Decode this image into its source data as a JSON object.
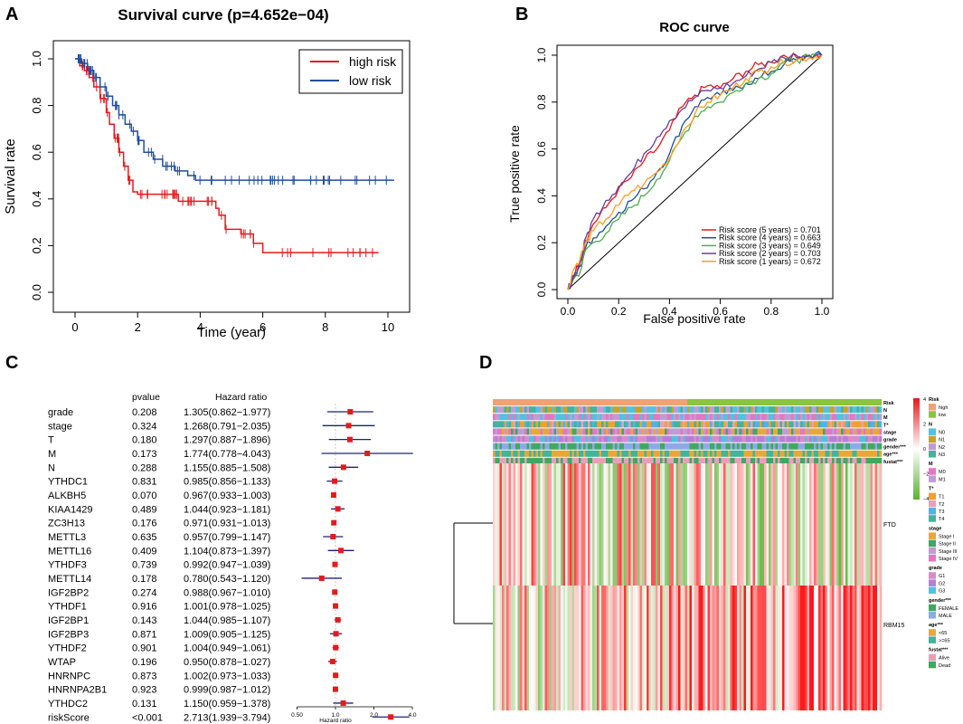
{
  "panels": {
    "a": "A",
    "b": "B",
    "c": "C",
    "d": "D"
  },
  "colors": {
    "red": "#e41a1c",
    "blue": "#1f4e9c",
    "green": "#4daf4a",
    "purple": "#6a3d9a",
    "orange": "#ff9f1c",
    "hmRed": "#e31a1c",
    "hmGreen": "#5bb12f",
    "riskHigh": "#f2a173",
    "riskLow": "#8bc53f"
  },
  "chart_data": [
    {
      "type": "line",
      "id": "survival",
      "title": "Survival curve (p=4.652e−04)",
      "xlabel": "Time (year)",
      "ylabel": "Survival rate",
      "xlim": [
        0,
        10.2
      ],
      "ylim": [
        0,
        1.0
      ],
      "xticks": [
        "0",
        "2",
        "4",
        "6",
        "8",
        "10"
      ],
      "yticks": [
        "0.0",
        "0.2",
        "0.4",
        "0.6",
        "0.8",
        "1.0"
      ],
      "legend": [
        "high risk",
        "low risk"
      ],
      "series": [
        {
          "name": "high risk",
          "x": [
            0,
            0.15,
            0.3,
            0.45,
            0.6,
            0.8,
            1.0,
            1.1,
            1.25,
            1.4,
            1.55,
            1.7,
            1.85,
            2.0,
            3.0,
            3.3,
            4.5,
            4.6,
            4.8,
            5.3,
            5.7,
            6.0,
            9.7
          ],
          "y": [
            1.0,
            0.97,
            0.95,
            0.92,
            0.88,
            0.83,
            0.77,
            0.72,
            0.66,
            0.6,
            0.54,
            0.48,
            0.43,
            0.42,
            0.42,
            0.39,
            0.36,
            0.33,
            0.27,
            0.25,
            0.21,
            0.17,
            0.17
          ]
        },
        {
          "name": "low risk",
          "x": [
            0,
            0.2,
            0.4,
            0.6,
            0.8,
            1.0,
            1.2,
            1.4,
            1.6,
            1.8,
            2.0,
            2.2,
            2.5,
            2.8,
            3.2,
            3.6,
            3.85,
            10.2
          ],
          "y": [
            1.0,
            0.98,
            0.95,
            0.92,
            0.88,
            0.84,
            0.8,
            0.76,
            0.72,
            0.69,
            0.65,
            0.6,
            0.57,
            0.54,
            0.52,
            0.5,
            0.48,
            0.48
          ]
        }
      ]
    },
    {
      "type": "line",
      "id": "roc",
      "title": "ROC curve",
      "xlabel": "False positive rate",
      "ylabel": "True positive rate",
      "xlim": [
        0,
        1
      ],
      "ylim": [
        0,
        1
      ],
      "xticks": [
        "0.0",
        "0.2",
        "0.4",
        "0.6",
        "0.8",
        "1.0"
      ],
      "yticks": [
        "0.0",
        "0.2",
        "0.4",
        "0.6",
        "0.8",
        "1.0"
      ],
      "series": [
        {
          "name": "Risk score (5 years) = 0.701",
          "x": [
            0,
            0.02,
            0.05,
            0.07,
            0.1,
            0.15,
            0.2,
            0.25,
            0.3,
            0.35,
            0.4,
            0.45,
            0.5,
            0.55,
            0.6,
            0.65,
            0.7,
            0.75,
            0.8,
            0.85,
            0.9,
            0.95,
            1.0
          ],
          "y": [
            0,
            0.06,
            0.12,
            0.21,
            0.28,
            0.35,
            0.43,
            0.48,
            0.55,
            0.6,
            0.68,
            0.78,
            0.83,
            0.87,
            0.86,
            0.9,
            0.93,
            0.96,
            0.97,
            1.0,
            0.99,
            1.0,
            1.0
          ]
        },
        {
          "name": "Risk score (4 years) = 0.663",
          "x": [
            0,
            0.02,
            0.05,
            0.07,
            0.1,
            0.15,
            0.2,
            0.25,
            0.3,
            0.35,
            0.4,
            0.45,
            0.5,
            0.55,
            0.6,
            0.65,
            0.7,
            0.75,
            0.8,
            0.85,
            0.9,
            0.95,
            1.0
          ],
          "y": [
            0,
            0.04,
            0.1,
            0.18,
            0.22,
            0.27,
            0.33,
            0.38,
            0.43,
            0.5,
            0.58,
            0.7,
            0.78,
            0.82,
            0.83,
            0.85,
            0.88,
            0.9,
            0.93,
            0.96,
            0.98,
            1.0,
            1.0
          ]
        },
        {
          "name": "Risk score (3 years) = 0.649",
          "x": [
            0,
            0.02,
            0.05,
            0.07,
            0.1,
            0.15,
            0.2,
            0.25,
            0.3,
            0.35,
            0.4,
            0.45,
            0.5,
            0.55,
            0.6,
            0.65,
            0.7,
            0.75,
            0.8,
            0.85,
            0.9,
            0.95,
            1.0
          ],
          "y": [
            0,
            0.04,
            0.08,
            0.17,
            0.2,
            0.24,
            0.3,
            0.35,
            0.4,
            0.47,
            0.55,
            0.65,
            0.74,
            0.78,
            0.8,
            0.84,
            0.88,
            0.9,
            0.92,
            0.97,
            0.98,
            0.99,
            1.0
          ]
        },
        {
          "name": "Risk score (2 years) = 0.703",
          "x": [
            0,
            0.02,
            0.05,
            0.07,
            0.1,
            0.15,
            0.2,
            0.25,
            0.3,
            0.35,
            0.4,
            0.45,
            0.5,
            0.55,
            0.6,
            0.65,
            0.7,
            0.75,
            0.8,
            0.85,
            0.9,
            0.95,
            1.0
          ],
          "y": [
            0,
            0.05,
            0.12,
            0.22,
            0.3,
            0.38,
            0.44,
            0.5,
            0.58,
            0.65,
            0.72,
            0.77,
            0.82,
            0.85,
            0.86,
            0.88,
            0.91,
            0.94,
            0.97,
            0.99,
            1.0,
            1.0,
            1.0
          ]
        },
        {
          "name": "Risk score (1 years) = 0.672",
          "x": [
            0,
            0.02,
            0.05,
            0.07,
            0.1,
            0.15,
            0.2,
            0.25,
            0.3,
            0.35,
            0.4,
            0.45,
            0.5,
            0.55,
            0.6,
            0.65,
            0.7,
            0.75,
            0.8,
            0.85,
            0.9,
            0.95,
            1.0
          ],
          "y": [
            0,
            0.08,
            0.14,
            0.2,
            0.25,
            0.3,
            0.36,
            0.42,
            0.45,
            0.5,
            0.56,
            0.67,
            0.75,
            0.8,
            0.83,
            0.86,
            0.9,
            0.93,
            0.95,
            0.97,
            0.98,
            0.99,
            1.0
          ]
        }
      ]
    },
    {
      "type": "forest",
      "id": "forest",
      "headers": {
        "pvalue": "pvalue",
        "hr": "Hazard ratio"
      },
      "xlabel": "Hazard ratio",
      "xticks": [
        "0.50",
        "1.0",
        "2.0",
        "4.0"
      ],
      "xtick_values": [
        0.5,
        1.0,
        2.0,
        4.0
      ],
      "rows": [
        {
          "name": "grade",
          "p": "0.208",
          "hr_text": "1.305(0.862−1.977)",
          "hr": 1.305,
          "lo": 0.862,
          "hi": 1.977
        },
        {
          "name": "stage",
          "p": "0.324",
          "hr_text": "1.268(0.791−2.035)",
          "hr": 1.268,
          "lo": 0.791,
          "hi": 2.035
        },
        {
          "name": "T",
          "p": "0.180",
          "hr_text": "1.297(0.887−1.896)",
          "hr": 1.297,
          "lo": 0.887,
          "hi": 1.896
        },
        {
          "name": "M",
          "p": "0.173",
          "hr_text": "1.774(0.778−4.043)",
          "hr": 1.774,
          "lo": 0.778,
          "hi": 4.043
        },
        {
          "name": "N",
          "p": "0.288",
          "hr_text": "1.155(0.885−1.508)",
          "hr": 1.155,
          "lo": 0.885,
          "hi": 1.508
        },
        {
          "name": "YTHDC1",
          "p": "0.831",
          "hr_text": "0.985(0.856−1.133)",
          "hr": 0.985,
          "lo": 0.856,
          "hi": 1.133
        },
        {
          "name": "ALKBH5",
          "p": "0.070",
          "hr_text": "0.967(0.933−1.003)",
          "hr": 0.967,
          "lo": 0.933,
          "hi": 1.003
        },
        {
          "name": "KIAA1429",
          "p": "0.489",
          "hr_text": "1.044(0.923−1.181)",
          "hr": 1.044,
          "lo": 0.923,
          "hi": 1.181
        },
        {
          "name": "ZC3H13",
          "p": "0.176",
          "hr_text": "0.971(0.931−1.013)",
          "hr": 0.971,
          "lo": 0.931,
          "hi": 1.013
        },
        {
          "name": "METTL3",
          "p": "0.635",
          "hr_text": "0.957(0.799−1.147)",
          "hr": 0.957,
          "lo": 0.799,
          "hi": 1.147
        },
        {
          "name": "METTL16",
          "p": "0.409",
          "hr_text": "1.104(0.873−1.397)",
          "hr": 1.104,
          "lo": 0.873,
          "hi": 1.397
        },
        {
          "name": "YTHDF3",
          "p": "0.739",
          "hr_text": "0.992(0.947−1.039)",
          "hr": 0.992,
          "lo": 0.947,
          "hi": 1.039
        },
        {
          "name": "METTL14",
          "p": "0.178",
          "hr_text": "0.780(0.543−1.120)",
          "hr": 0.78,
          "lo": 0.543,
          "hi": 1.12
        },
        {
          "name": "IGF2BP2",
          "p": "0.274",
          "hr_text": "0.988(0.967−1.010)",
          "hr": 0.988,
          "lo": 0.967,
          "hi": 1.01
        },
        {
          "name": "YTHDF1",
          "p": "0.916",
          "hr_text": "1.001(0.978−1.025)",
          "hr": 1.001,
          "lo": 0.978,
          "hi": 1.025
        },
        {
          "name": "IGF2BP1",
          "p": "0.143",
          "hr_text": "1.044(0.985−1.107)",
          "hr": 1.044,
          "lo": 0.985,
          "hi": 1.107
        },
        {
          "name": "IGF2BP3",
          "p": "0.871",
          "hr_text": "1.009(0.905−1.125)",
          "hr": 1.009,
          "lo": 0.905,
          "hi": 1.125
        },
        {
          "name": "YTHDF2",
          "p": "0.901",
          "hr_text": "1.004(0.949−1.061)",
          "hr": 1.004,
          "lo": 0.949,
          "hi": 1.061
        },
        {
          "name": "WTAP",
          "p": "0.196",
          "hr_text": "0.950(0.878−1.027)",
          "hr": 0.95,
          "lo": 0.878,
          "hi": 1.027
        },
        {
          "name": "HNRNPC",
          "p": "0.873",
          "hr_text": "1.002(0.973−1.033)",
          "hr": 1.002,
          "lo": 0.973,
          "hi": 1.033
        },
        {
          "name": "HNRNPA2B1",
          "p": "0.923",
          "hr_text": "0.999(0.987−1.012)",
          "hr": 0.999,
          "lo": 0.987,
          "hi": 1.012
        },
        {
          "name": "YTHDC2",
          "p": "0.131",
          "hr_text": "1.150(0.959−1.378)",
          "hr": 1.15,
          "lo": 0.959,
          "hi": 1.378
        },
        {
          "name": "riskScore",
          "p": "<0.001",
          "hr_text": "2.713(1.939−3.794)",
          "hr": 2.713,
          "lo": 1.939,
          "hi": 3.794
        }
      ]
    },
    {
      "type": "heatmap",
      "id": "heatmap",
      "rows": [
        "FTO",
        "RBM15"
      ],
      "annotation_rows": [
        "Risk",
        "N",
        "M",
        "T*",
        "stage",
        "grade",
        "gender***",
        "age***",
        "fustat***"
      ],
      "colorbar_ticks": [
        "4",
        "2",
        "0",
        "−2",
        "−4"
      ],
      "legend_groups": [
        {
          "title": "Risk",
          "items": [
            {
              "label": "high",
              "color": "#f2a173"
            },
            {
              "label": "low",
              "color": "#8bc53f"
            }
          ]
        },
        {
          "title": "N",
          "items": [
            {
              "label": "N0",
              "color": "#4fc3e0"
            },
            {
              "label": "N1",
              "color": "#c9a227"
            },
            {
              "label": "N2",
              "color": "#c39bd3"
            },
            {
              "label": "N3",
              "color": "#43b39b"
            }
          ]
        },
        {
          "title": "M",
          "items": [
            {
              "label": "M0",
              "color": "#e377c2"
            },
            {
              "label": "M1",
              "color": "#c39bd3"
            }
          ]
        },
        {
          "title": "T*",
          "items": [
            {
              "label": "T1",
              "color": "#f0a030"
            },
            {
              "label": "T2",
              "color": "#e8a0b8"
            },
            {
              "label": "T3",
              "color": "#4fb3e8"
            },
            {
              "label": "T4",
              "color": "#43b39b"
            }
          ]
        },
        {
          "title": "stage",
          "items": [
            {
              "label": "Stage I",
              "color": "#e8a838"
            },
            {
              "label": "Stage II",
              "color": "#41a85f"
            },
            {
              "label": "Stage III",
              "color": "#c39bd3"
            },
            {
              "label": "Stage IV",
              "color": "#e377c2"
            }
          ]
        },
        {
          "title": "grade",
          "items": [
            {
              "label": "G1",
              "color": "#d98cc9"
            },
            {
              "label": "G2",
              "color": "#b57fd6"
            },
            {
              "label": "G3",
              "color": "#4fc3e0"
            }
          ]
        },
        {
          "title": "gender***",
          "items": [
            {
              "label": "FEMALE",
              "color": "#41a85f"
            },
            {
              "label": "MALE",
              "color": "#8ea9e8"
            }
          ]
        },
        {
          "title": "age***",
          "items": [
            {
              "label": "<65",
              "color": "#e8a838"
            },
            {
              "label": ">=65",
              "color": "#43b39b"
            }
          ]
        },
        {
          "title": "fustat***",
          "items": [
            {
              "label": "Alive",
              "color": "#e8a0b8"
            },
            {
              "label": "Dead",
              "color": "#41a85f"
            }
          ]
        }
      ]
    }
  ]
}
